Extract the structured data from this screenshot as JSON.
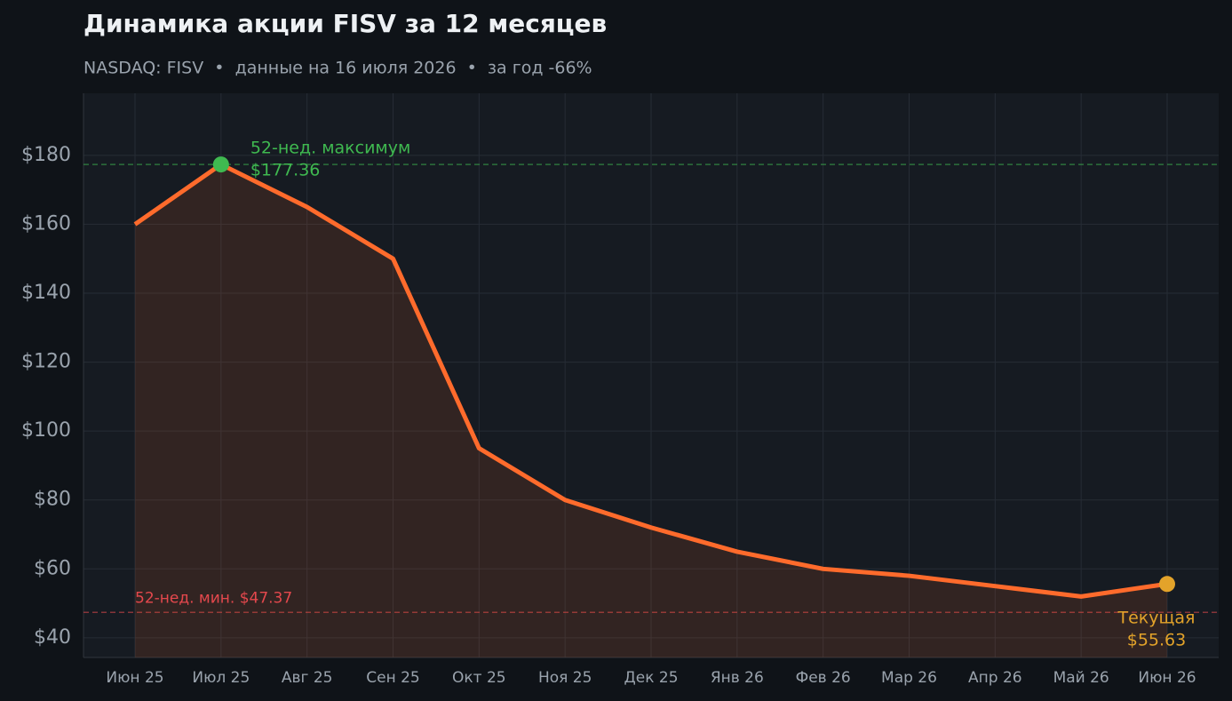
{
  "chart_data": {
    "type": "line",
    "title": "Динамика акции FISV за 12 месяцев",
    "subtitle": "NASDAQ: FISV  •  данные на 16 июля 2026  •  за год -66%",
    "categories": [
      "Июн 25",
      "Июл 25",
      "Авг 25",
      "Сен 25",
      "Окт 25",
      "Ноя 25",
      "Дек 25",
      "Янв 26",
      "Фев 26",
      "Мар 26",
      "Апр 26",
      "Май 26",
      "Июн 26"
    ],
    "series": [
      {
        "name": "FISV",
        "color": "#ff6b2c",
        "values": [
          160,
          177.36,
          165,
          150,
          95,
          80,
          72,
          65,
          60,
          58,
          55,
          52,
          55.63
        ]
      }
    ],
    "ylim": [
      34.3,
      198
    ],
    "yticks": [
      {
        "value": 40,
        "label": "$40"
      },
      {
        "value": 60,
        "label": "$60"
      },
      {
        "value": 80,
        "label": "$80"
      },
      {
        "value": 100,
        "label": "$100"
      },
      {
        "value": 120,
        "label": "$120"
      },
      {
        "value": 140,
        "label": "$140"
      },
      {
        "value": 160,
        "label": "$160"
      },
      {
        "value": 180,
        "label": "$180"
      }
    ],
    "grid": true,
    "high_line": {
      "value": 177.36,
      "label": "52-нед. максимум",
      "value_label": "$177.36",
      "color": "#3fb950"
    },
    "low_line": {
      "value": 47.37,
      "label": "52-нед. мин. $47.37",
      "color": "#e5484d"
    },
    "current": {
      "label": "Текущая",
      "value_label": "$55.63",
      "color": "#e3a32a"
    }
  }
}
